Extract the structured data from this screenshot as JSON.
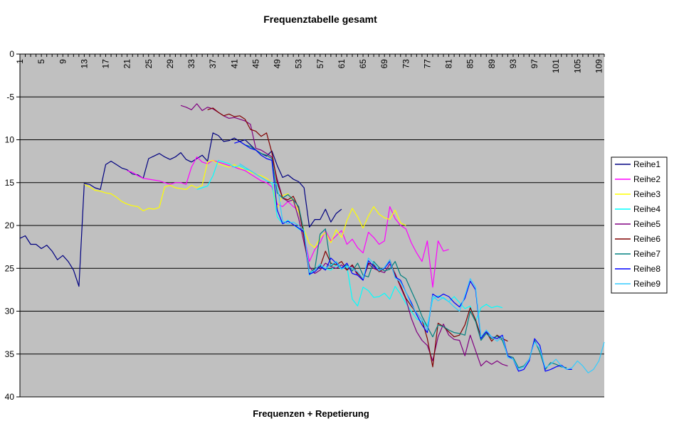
{
  "chart_data": {
    "type": "line",
    "title": "Frequenztabelle gesamt",
    "xlabel": "Frequenzen + Repetierung",
    "ylabel": "",
    "xlim": [
      1,
      110
    ],
    "ylim": [
      -40,
      0
    ],
    "x_ticks": [
      1,
      5,
      9,
      13,
      17,
      21,
      25,
      29,
      33,
      37,
      41,
      45,
      49,
      53,
      57,
      61,
      65,
      69,
      73,
      77,
      81,
      85,
      89,
      93,
      97,
      101,
      105,
      109
    ],
    "y_ticks": [
      0,
      -5,
      -10,
      -15,
      -20,
      -25,
      -30,
      -35,
      -40
    ],
    "y_tick_labels": [
      "0",
      "-5",
      "10",
      "15",
      "20",
      "25",
      "30",
      "35",
      "40"
    ],
    "grid": true,
    "legend": "right",
    "colors": {
      "plot_bg": "#c0c0c0",
      "grid": "#000000",
      "Reihe1": "#000080",
      "Reihe2": "#ff00ff",
      "Reihe3": "#ffff00",
      "Reihe4": "#00ffff",
      "Reihe5": "#800080",
      "Reihe6": "#800000",
      "Reihe7": "#008080",
      "Reihe8": "#0000ff",
      "Reihe9": "#33ccff"
    },
    "series": [
      {
        "name": "Reihe1",
        "x": [
          1,
          2,
          3,
          4,
          5,
          6,
          7,
          8,
          9,
          10,
          11,
          12,
          13,
          14,
          15,
          16,
          17,
          18,
          19,
          20,
          21,
          22,
          23,
          24,
          25,
          26,
          27,
          28,
          29,
          30,
          31,
          32,
          33,
          34,
          35,
          36,
          37,
          38,
          39,
          40,
          41,
          42,
          43,
          44,
          45,
          46,
          47,
          48,
          49,
          50,
          51,
          52,
          53,
          54,
          55,
          56,
          57,
          58,
          59,
          60,
          61
        ],
        "y": [
          -21.5,
          -21.2,
          -22.2,
          -22.2,
          -22.7,
          -22.3,
          -23,
          -24,
          -23.5,
          -24.2,
          -25.2,
          -27.1,
          -15.1,
          -15.2,
          -15.6,
          -15.8,
          -12.9,
          -12.5,
          -12.9,
          -13.3,
          -13.5,
          -14,
          -14.1,
          -14.5,
          -12.2,
          -11.9,
          -11.6,
          -12,
          -12.3,
          -12.0,
          -11.5,
          -12.3,
          -12.6,
          -12.2,
          -11.8,
          -12.5,
          -9.2,
          -9.5,
          -10.2,
          -10.1,
          -9.8,
          -10.2,
          -10.0,
          -10.6,
          -11.2,
          -11.6,
          -11.9,
          -11.3,
          -13.0,
          -14.4,
          -14.1,
          -14.6,
          -14.9,
          -15.6,
          -20.2,
          -19.3,
          -19.3,
          -18.1,
          -19.6,
          -18.6,
          -18.1
        ]
      },
      {
        "name": "Reihe2",
        "x": [
          21,
          22,
          23,
          24,
          25,
          26,
          27,
          28,
          29,
          30,
          31,
          32,
          33,
          34,
          35,
          36,
          37,
          38,
          39,
          40,
          41,
          42,
          43,
          44,
          45,
          46,
          47,
          48,
          49,
          50,
          51,
          52,
          53,
          54,
          55,
          56,
          57,
          58,
          59,
          60,
          61,
          62,
          63,
          64,
          65,
          66,
          67,
          68,
          69,
          70,
          71,
          72,
          73,
          74,
          75,
          76,
          77,
          78,
          79,
          80,
          81
        ],
        "y": [
          -13.6,
          -13.8,
          -14.2,
          -14.5,
          -14.6,
          -14.7,
          -14.8,
          -15,
          -15.2,
          -15,
          -15,
          -15.2,
          -13.2,
          -12,
          -12.6,
          -12.8,
          -12.4,
          -12.6,
          -12.8,
          -13.0,
          -13.2,
          -13.4,
          -13.6,
          -14.0,
          -14.4,
          -14.8,
          -15.0,
          -15.5,
          -17.5,
          -17.8,
          -17.2,
          -17.8,
          -18.2,
          -21.2,
          -24.2,
          -22.8,
          -22.0,
          -20.6,
          -21.8,
          -21.2,
          -20.6,
          -22.2,
          -21.6,
          -22.6,
          -23.2,
          -20.8,
          -21.4,
          -22.2,
          -21.8,
          -17.8,
          -19.2,
          -20.0,
          -20.4,
          -22.0,
          -23.2,
          -24.2,
          -21.8,
          -27.2,
          -21.8,
          -23.0,
          -22.8
        ]
      },
      {
        "name": "Reihe3",
        "x": [
          13,
          14,
          15,
          16,
          17,
          18,
          19,
          20,
          21,
          22,
          23,
          24,
          25,
          26,
          27,
          28,
          29,
          30,
          31,
          32,
          33,
          34,
          35,
          36,
          37,
          38,
          39,
          40,
          41,
          42,
          43,
          44,
          45,
          46,
          47,
          48,
          49,
          50,
          51,
          52,
          53,
          54,
          55,
          56,
          57,
          58,
          59,
          60,
          61,
          62,
          63,
          64,
          65,
          66,
          67,
          68,
          69,
          70,
          71,
          72,
          73
        ],
        "y": [
          -15.2,
          -15.5,
          -15.9,
          -16,
          -16.2,
          -16.3,
          -16.7,
          -17.2,
          -17.5,
          -17.7,
          -17.8,
          -18.3,
          -18,
          -18.1,
          -17.9,
          -15.5,
          -15.3,
          -15.6,
          -15.7,
          -15.8,
          -15.3,
          -15.6,
          -15.3,
          -12.6,
          -12.4,
          -12.8,
          -13.0,
          -13.2,
          -12.9,
          -13.3,
          -13.4,
          -13.8,
          -14.0,
          -14.2,
          -14.5,
          -15.0,
          -18.0,
          -16.5,
          -16.3,
          -17.2,
          -18.4,
          -20.5,
          -22.1,
          -22.6,
          -21.4,
          -20.8,
          -22.0,
          -20.5,
          -21.4,
          -19.4,
          -18.0,
          -19.0,
          -20.3,
          -18.9,
          -17.8,
          -18.7,
          -19.1,
          -19.3,
          -18.2,
          -19.7,
          -20.0
        ]
      },
      {
        "name": "Reihe4",
        "x": [
          34,
          35,
          36,
          37,
          38,
          39,
          40,
          41,
          42,
          43,
          44,
          45,
          46,
          47,
          48,
          49,
          50,
          51,
          52,
          53,
          54,
          55,
          56,
          57,
          58,
          59,
          60,
          61,
          62,
          63,
          64,
          65,
          66,
          67,
          68,
          69,
          70,
          71,
          72,
          73,
          74,
          75,
          76,
          77,
          78,
          79,
          80,
          81,
          82,
          83,
          84,
          85,
          86,
          87,
          88,
          89,
          90,
          91
        ],
        "y": [
          -15.8,
          -15.6,
          -15.4,
          -14.2,
          -12.4,
          -12.6,
          -12.8,
          -13.2,
          -13.0,
          -13.4,
          -13.6,
          -14.0,
          -14.4,
          -14.8,
          -15.0,
          -19.0,
          -19.8,
          -19.4,
          -19.9,
          -20.4,
          -20.8,
          -25.8,
          -25.1,
          -24.7,
          -25.0,
          -25.2,
          -24.6,
          -25.1,
          -24.8,
          -28.6,
          -29.4,
          -27.2,
          -27.6,
          -28.4,
          -28.3,
          -27.9,
          -28.6,
          -27.1,
          -28.0,
          -29.1,
          -30.0,
          -30.9,
          -31.2,
          -31.7,
          -28.6,
          -28.2,
          -28.5,
          -28.9,
          -28.3,
          -29.0,
          -29.7,
          -29.4,
          -31.2,
          -29.6,
          -29.2,
          -29.6,
          -29.4,
          -29.6
        ]
      },
      {
        "name": "Reihe5",
        "x": [
          31,
          32,
          33,
          34,
          35,
          36,
          37,
          38,
          39,
          40,
          41,
          42,
          43,
          44,
          45,
          46,
          47,
          48,
          49,
          50,
          51,
          52,
          53,
          54,
          55,
          56,
          57,
          58,
          59,
          60,
          61,
          62,
          63,
          64,
          65,
          66,
          67,
          68,
          69,
          70,
          71,
          72,
          73,
          74,
          75,
          76,
          77,
          78,
          79,
          80,
          81,
          82,
          83,
          84,
          85,
          86,
          87,
          88,
          89,
          90,
          91,
          92
        ],
        "y": [
          -6.0,
          -6.2,
          -6.5,
          -5.8,
          -6.6,
          -6.2,
          -6.4,
          -6.8,
          -7.2,
          -7.5,
          -7.4,
          -7.6,
          -7.8,
          -8.2,
          -11.0,
          -11.2,
          -11.6,
          -12.0,
          -14.6,
          -16.8,
          -17.2,
          -17.0,
          -19.2,
          -22.0,
          -24.8,
          -25.6,
          -25.2,
          -24.4,
          -24.8,
          -25.0,
          -24.6,
          -25.2,
          -24.7,
          -25.8,
          -26.3,
          -24.5,
          -25.0,
          -25.3,
          -25.5,
          -24.5,
          -25.6,
          -27.2,
          -28.6,
          -30.8,
          -32.4,
          -33.4,
          -34.0,
          -35.8,
          -33.0,
          -31.5,
          -32.8,
          -33.3,
          -33.4,
          -35.2,
          -32.8,
          -34.6,
          -36.4,
          -35.8,
          -36.2,
          -35.8,
          -36.2,
          -36.4
        ]
      },
      {
        "name": "Reihe6",
        "x": [
          36,
          37,
          38,
          39,
          40,
          41,
          42,
          43,
          44,
          45,
          46,
          47,
          48,
          49,
          50,
          51,
          52,
          53,
          54,
          55,
          56,
          57,
          58,
          59,
          60,
          61,
          62,
          63,
          64,
          65,
          66,
          67,
          68,
          69,
          70,
          71,
          72,
          73,
          74,
          75,
          76,
          77,
          78,
          79,
          80,
          81,
          82,
          83,
          84,
          85,
          86,
          87,
          88,
          89,
          90,
          91,
          92
        ],
        "y": [
          -6.5,
          -6.3,
          -6.8,
          -7.2,
          -7.0,
          -7.3,
          -7.2,
          -7.6,
          -8.8,
          -9.0,
          -9.6,
          -9.2,
          -11.5,
          -15.0,
          -16.8,
          -17.0,
          -16.6,
          -18.0,
          -21.4,
          -25.6,
          -25.0,
          -24.8,
          -23.0,
          -24.4,
          -24.6,
          -24.2,
          -25.2,
          -24.6,
          -25.6,
          -26.2,
          -24.4,
          -24.6,
          -25.4,
          -25.0,
          -24.0,
          -25.8,
          -27.0,
          -28.5,
          -29.4,
          -30.2,
          -31.0,
          -33.2,
          -36.5,
          -31.4,
          -31.8,
          -32.4,
          -33.0,
          -32.8,
          -31.6,
          -29.6,
          -31.0,
          -33.0,
          -32.4,
          -33.5,
          -32.8,
          -33.2,
          -33.5
        ]
      },
      {
        "name": "Reihe7",
        "x": [
          42,
          43,
          44,
          45,
          46,
          47,
          48,
          49,
          50,
          51,
          52,
          53,
          54,
          55,
          56,
          57,
          58,
          59,
          60,
          61,
          62,
          63,
          64,
          65,
          66,
          67,
          68,
          69,
          70,
          71,
          72,
          73,
          74,
          75,
          76,
          77,
          78,
          79,
          80,
          81,
          82,
          83,
          84,
          85,
          86,
          87,
          88,
          89,
          90,
          91,
          92,
          93,
          94,
          95,
          96,
          97,
          98,
          99,
          100,
          101,
          102,
          103
        ],
        "y": [
          -10.2,
          -10.6,
          -10.8,
          -11.2,
          -11.6,
          -11.8,
          -12.2,
          -16.2,
          -16.8,
          -16.4,
          -17.0,
          -17.8,
          -20.8,
          -25.5,
          -25.1,
          -21.0,
          -20.4,
          -24.8,
          -24.2,
          -25.0,
          -24.6,
          -25.3,
          -24.4,
          -25.8,
          -26.0,
          -24.2,
          -24.9,
          -25.3,
          -25.1,
          -24.2,
          -25.8,
          -26.2,
          -27.6,
          -29.0,
          -30.6,
          -31.8,
          -33.0,
          -31.6,
          -31.8,
          -32.2,
          -32.5,
          -32.6,
          -32.8,
          -30.0,
          -31.2,
          -33.4,
          -32.6,
          -33.2,
          -32.9,
          -33.4,
          -35.2,
          -35.4,
          -36.6,
          -36.4,
          -35.6,
          -33.4,
          -34.8,
          -36.8,
          -36.0,
          -36.2,
          -36.5,
          -36.6
        ]
      },
      {
        "name": "Reihe8",
        "x": [
          41,
          42,
          43,
          44,
          45,
          46,
          47,
          48,
          49,
          50,
          51,
          52,
          53,
          54,
          55,
          56,
          57,
          58,
          59,
          60,
          61,
          62,
          63,
          64,
          65,
          66,
          67,
          68,
          69,
          70,
          71,
          72,
          73,
          74,
          75,
          76,
          77,
          78,
          79,
          80,
          81,
          82,
          83,
          84,
          85,
          86,
          87,
          88,
          89,
          90,
          91,
          92,
          93,
          94,
          95,
          96,
          97,
          98,
          99,
          100,
          101,
          102,
          103,
          104
        ],
        "y": [
          -10.4,
          -10.2,
          -10.6,
          -11.0,
          -11.2,
          -11.8,
          -12.2,
          -12.4,
          -18.2,
          -19.8,
          -19.5,
          -19.9,
          -20.3,
          -20.8,
          -25.7,
          -25.4,
          -24.8,
          -25.2,
          -23.8,
          -24.4,
          -25.0,
          -24.4,
          -25.6,
          -25.8,
          -26.4,
          -24.1,
          -24.8,
          -25.2,
          -25.0,
          -24.2,
          -26.0,
          -26.4,
          -27.8,
          -29.0,
          -30.4,
          -31.6,
          -32.5,
          -28.0,
          -28.4,
          -28.0,
          -28.3,
          -29.0,
          -29.5,
          -28.5,
          -26.5,
          -27.5,
          -33.2,
          -32.4,
          -33.0,
          -33.2,
          -32.8,
          -35.2,
          -35.6,
          -37.0,
          -36.8,
          -35.8,
          -33.2,
          -34.0,
          -37.0,
          -36.8,
          -36.5,
          -36.3,
          -36.8,
          -36.8
        ]
      },
      {
        "name": "Reihe9",
        "x": [
          42,
          43,
          44,
          45,
          46,
          47,
          48,
          49,
          50,
          51,
          52,
          53,
          54,
          55,
          56,
          57,
          58,
          59,
          60,
          61,
          62,
          63,
          64,
          65,
          66,
          67,
          68,
          69,
          70,
          71,
          72,
          73,
          74,
          75,
          76,
          77,
          78,
          79,
          80,
          81,
          82,
          83,
          84,
          85,
          86,
          87,
          88,
          89,
          90,
          91,
          92,
          93,
          94,
          95,
          96,
          97,
          98,
          99,
          100,
          101,
          102,
          103,
          104,
          105,
          106,
          107,
          108,
          109,
          110
        ],
        "y": [
          -12.8,
          -13.2,
          -13.6,
          -14.0,
          -14.4,
          -14.8,
          -15.0,
          -15.2,
          -19.5,
          -19.8,
          -19.6,
          -20.0,
          -20.6,
          -25.5,
          -25.2,
          -24.5,
          -25.0,
          -24.6,
          -24.2,
          -25.1,
          -24.7,
          -25.0,
          -25.4,
          -26.2,
          -23.8,
          -24.4,
          -25.3,
          -24.9,
          -24.0,
          -26.1,
          -26.6,
          -27.8,
          -29.2,
          -30.2,
          -31.0,
          -32.2,
          -28.2,
          -28.8,
          -28.4,
          -28.9,
          -29.5,
          -30.0,
          -28.2,
          -26.2,
          -27.2,
          -33.0,
          -32.2,
          -33.0,
          -33.5,
          -33.0,
          -35.4,
          -35.6,
          -36.8,
          -36.5,
          -35.6,
          -33.6,
          -34.4,
          -36.6,
          -36.2,
          -35.6,
          -36.4,
          -36.8,
          -36.6,
          -35.8,
          -36.4,
          -37.2,
          -36.8,
          -35.8,
          -33.6
        ]
      }
    ]
  }
}
